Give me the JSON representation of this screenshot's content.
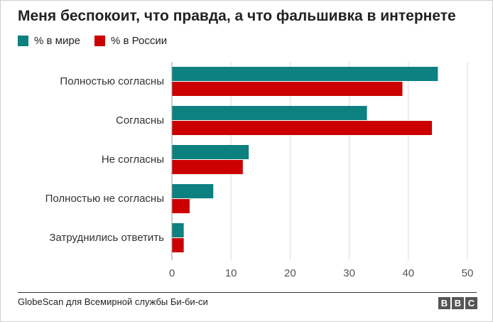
{
  "chart_data": {
    "type": "bar",
    "orientation": "horizontal",
    "title": "Меня беспокоит, что правда, а что фальшивка в интернете",
    "categories": [
      "Полностью согласны",
      "Согласны",
      "Не согласны",
      "Полностью не согласны",
      "Затруднились ответить"
    ],
    "series": [
      {
        "name": "% в мире",
        "color": "#0d8080",
        "values": [
          45,
          33,
          13,
          7,
          2
        ]
      },
      {
        "name": "% в России",
        "color": "#cc0000",
        "values": [
          39,
          44,
          12,
          3,
          2
        ]
      }
    ],
    "xlim": [
      0,
      50
    ],
    "xticks": [
      "0",
      "10",
      "20",
      "30",
      "40",
      "50"
    ],
    "grid": true,
    "legend_position": "top-left"
  },
  "source": "GlobeScan для Всемирной службы Би-би-си",
  "logo": {
    "letters": [
      "B",
      "B",
      "C"
    ]
  }
}
